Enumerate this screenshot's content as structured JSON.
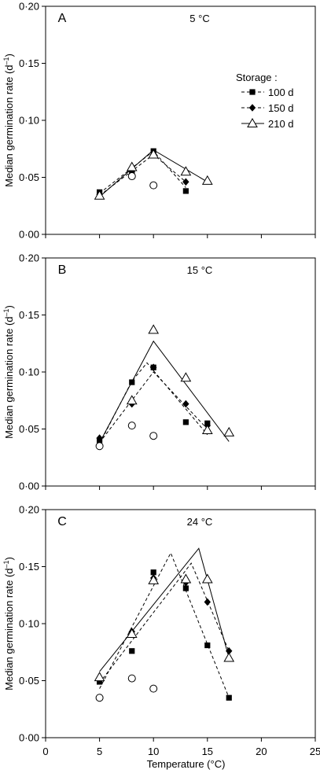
{
  "figure": {
    "ylabel": "Median germination rate (d",
    "ylabel_sup": "–1",
    "ylabel_close": ")",
    "xlabel": "Temperature (°C)",
    "xticks": [
      "0",
      "5",
      "10",
      "15",
      "20",
      "25"
    ],
    "yticks": [
      "0·00",
      "0·05",
      "0·10",
      "0·15",
      "0·20"
    ],
    "legend": {
      "title": "Storage :",
      "entries": [
        {
          "label": "100 d",
          "marker": "square",
          "line": "dashed"
        },
        {
          "label": "150 d",
          "marker": "diamond",
          "line": "dashed"
        },
        {
          "label": "210 d",
          "marker": "triangle",
          "line": "solid"
        }
      ]
    }
  },
  "chart_data": [
    {
      "type": "scatter",
      "panel": "A",
      "title": "5 °C",
      "xlim": [
        0,
        25
      ],
      "ylim": [
        0,
        0.2
      ],
      "series": [
        {
          "name": "100 d",
          "marker": "square",
          "points": [
            [
              5,
              0.037
            ],
            [
              8,
              0.055
            ],
            [
              10,
              0.073
            ],
            [
              13,
              0.038
            ]
          ],
          "fit": [
            [
              5,
              0.036
            ],
            [
              10,
              0.073
            ],
            [
              13,
              0.041
            ]
          ],
          "fit_style": "dashed"
        },
        {
          "name": "150 d",
          "marker": "diamond",
          "points": [
            [
              5,
              0.035
            ],
            [
              8,
              0.055
            ],
            [
              10,
              0.07
            ],
            [
              13,
              0.046
            ]
          ],
          "fit": [
            [
              5,
              0.034
            ],
            [
              10,
              0.07
            ],
            [
              13,
              0.046
            ]
          ],
          "fit_style": "dashed"
        },
        {
          "name": "210 d",
          "marker": "triangle",
          "points": [
            [
              5,
              0.034
            ],
            [
              8,
              0.059
            ],
            [
              10,
              0.07
            ],
            [
              13,
              0.055
            ],
            [
              15,
              0.047
            ]
          ],
          "fit": [
            [
              5,
              0.033
            ],
            [
              10,
              0.074
            ],
            [
              15,
              0.046
            ]
          ],
          "fit_style": "solid"
        },
        {
          "marker": "circle",
          "points": [
            [
              8,
              0.051
            ],
            [
              10,
              0.043
            ]
          ]
        }
      ]
    },
    {
      "type": "scatter",
      "panel": "B",
      "title": "15 °C",
      "xlim": [
        0,
        25
      ],
      "ylim": [
        0,
        0.2
      ],
      "series": [
        {
          "name": "100 d",
          "marker": "square",
          "points": [
            [
              5,
              0.04
            ],
            [
              8,
              0.091
            ],
            [
              10,
              0.104
            ],
            [
              13,
              0.056
            ],
            [
              15,
              0.055
            ]
          ],
          "fit": [
            [
              5,
              0.037
            ],
            [
              8,
              0.092
            ],
            [
              9.4,
              0.108
            ],
            [
              15,
              0.045
            ]
          ],
          "fit_style": "dashed"
        },
        {
          "name": "150 d",
          "marker": "diamond",
          "points": [
            [
              5,
              0.042
            ],
            [
              8,
              0.072
            ],
            [
              10,
              0.104
            ],
            [
              13,
              0.072
            ],
            [
              15,
              0.053
            ]
          ],
          "fit": [
            [
              5,
              0.038
            ],
            [
              10,
              0.1
            ],
            [
              15,
              0.05
            ]
          ],
          "fit_style": "dashed"
        },
        {
          "name": "210 d",
          "marker": "triangle",
          "points": [
            [
              8,
              0.075
            ],
            [
              10,
              0.137
            ],
            [
              13,
              0.095
            ],
            [
              15,
              0.049
            ],
            [
              17,
              0.047
            ]
          ],
          "fit": [
            [
              5,
              0.038
            ],
            [
              10,
              0.127
            ],
            [
              17,
              0.039
            ]
          ],
          "fit_style": "solid"
        },
        {
          "marker": "circle",
          "points": [
            [
              5,
              0.035
            ],
            [
              8,
              0.053
            ],
            [
              10,
              0.044
            ]
          ]
        }
      ]
    },
    {
      "type": "scatter",
      "panel": "C",
      "title": "24 °C",
      "xlim": [
        0,
        25
      ],
      "ylim": [
        0,
        0.2
      ],
      "series": [
        {
          "name": "100 d",
          "marker": "square",
          "points": [
            [
              5,
              0.049
            ],
            [
              8,
              0.076
            ],
            [
              10,
              0.145
            ],
            [
              13,
              0.131
            ],
            [
              15,
              0.081
            ],
            [
              17,
              0.035
            ]
          ],
          "fit": [
            [
              5,
              0.043
            ],
            [
              11.6,
              0.162
            ],
            [
              17,
              0.035
            ]
          ],
          "fit_style": "dashed"
        },
        {
          "name": "150 d",
          "marker": "diamond",
          "points": [
            [
              5,
              0.051
            ],
            [
              8,
              0.093
            ],
            [
              10,
              0.14
            ],
            [
              13,
              0.136
            ],
            [
              15,
              0.119
            ],
            [
              17,
              0.076
            ]
          ],
          "fit": [
            [
              5,
              0.048
            ],
            [
              13.5,
              0.153
            ],
            [
              17,
              0.076
            ]
          ],
          "fit_style": "dashed"
        },
        {
          "name": "210 d",
          "marker": "triangle",
          "points": [
            [
              5,
              0.053
            ],
            [
              8,
              0.091
            ],
            [
              10,
              0.138
            ],
            [
              13,
              0.139
            ],
            [
              15,
              0.139
            ],
            [
              17,
              0.07
            ]
          ],
          "fit": [
            [
              5,
              0.058
            ],
            [
              14.2,
              0.166
            ],
            [
              17,
              0.07
            ]
          ],
          "fit_style": "solid"
        },
        {
          "marker": "circle",
          "points": [
            [
              5,
              0.035
            ],
            [
              8,
              0.052
            ],
            [
              10,
              0.043
            ]
          ]
        }
      ]
    }
  ]
}
